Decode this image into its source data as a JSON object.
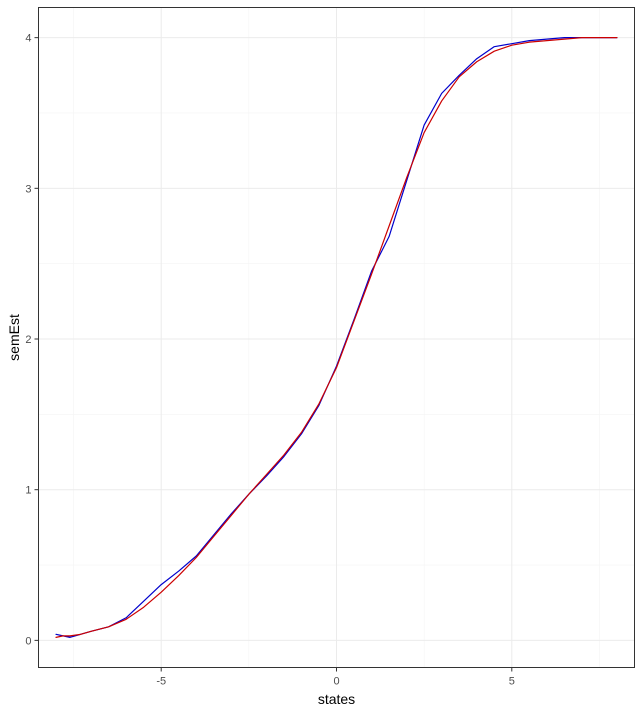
{
  "chart_data": {
    "type": "line",
    "title": "",
    "xlabel": "states",
    "ylabel": "semEst",
    "xlim": [
      -8.5,
      8.5
    ],
    "ylim": [
      -0.18,
      4.2
    ],
    "x_ticks": [
      -5,
      0,
      5
    ],
    "x_tick_labels": [
      "-5",
      "0",
      "5"
    ],
    "y_ticks": [
      0,
      1,
      2,
      3,
      4
    ],
    "y_tick_labels": [
      "0",
      "1",
      "2",
      "3",
      "4"
    ],
    "grid": true,
    "legend": "none",
    "series": [
      {
        "color": "#0000cc",
        "x": [
          -8,
          -7.8,
          -7.6,
          -7.3,
          -7,
          -6.5,
          -6,
          -5.5,
          -5,
          -4.5,
          -4,
          -3.5,
          -3,
          -2.5,
          -2,
          -1.5,
          -1,
          -0.5,
          0,
          0.5,
          1,
          1.5,
          2,
          2.5,
          3,
          3.5,
          4,
          4.5,
          5,
          5.5,
          6,
          6.5,
          7,
          7.5,
          8
        ],
        "y": [
          0.04,
          0.03,
          0.02,
          0.04,
          0.06,
          0.09,
          0.15,
          0.26,
          0.37,
          0.46,
          0.56,
          0.7,
          0.84,
          0.97,
          1.09,
          1.22,
          1.37,
          1.56,
          1.82,
          2.13,
          2.45,
          2.68,
          3.05,
          3.42,
          3.63,
          3.75,
          3.86,
          3.94,
          3.96,
          3.98,
          3.99,
          4.0,
          4.0,
          4.0,
          4.0
        ]
      },
      {
        "color": "#cc0000",
        "x": [
          -8,
          -7.8,
          -7.6,
          -7.3,
          -7,
          -6.5,
          -6,
          -5.5,
          -5,
          -4.5,
          -4,
          -3.5,
          -3,
          -2.5,
          -2,
          -1.5,
          -1,
          -0.5,
          0,
          0.5,
          1,
          1.5,
          2,
          2.5,
          3,
          3.5,
          4,
          4.5,
          5,
          5.5,
          6,
          6.5,
          7,
          7.5,
          8
        ],
        "y": [
          0.02,
          0.03,
          0.03,
          0.04,
          0.06,
          0.09,
          0.14,
          0.22,
          0.32,
          0.43,
          0.55,
          0.69,
          0.83,
          0.97,
          1.1,
          1.23,
          1.38,
          1.57,
          1.81,
          2.12,
          2.43,
          2.75,
          3.07,
          3.37,
          3.58,
          3.74,
          3.84,
          3.91,
          3.95,
          3.97,
          3.98,
          3.99,
          4.0,
          4.0,
          4.0
        ]
      }
    ]
  }
}
